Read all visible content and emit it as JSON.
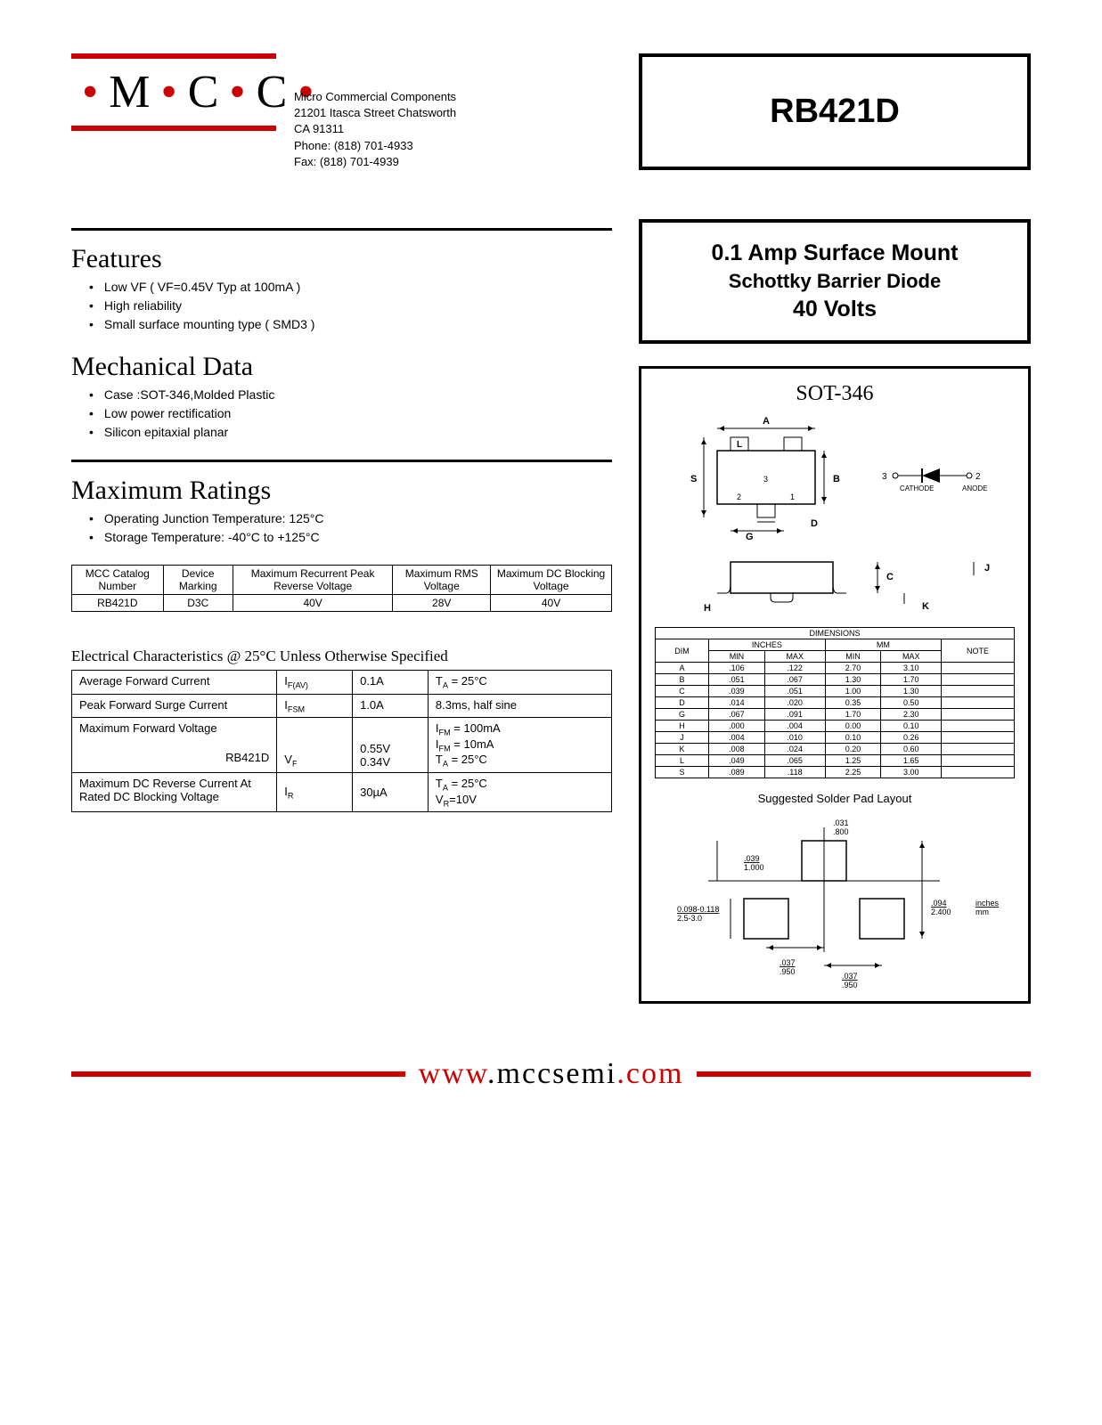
{
  "logo": "MCC",
  "company": {
    "name": "Micro Commercial Components",
    "addr1": "21201 Itasca Street Chatsworth",
    "addr2": "CA 91311",
    "phone": "Phone: (818) 701-4933",
    "fax": "Fax:     (818) 701-4939"
  },
  "part_number": "RB421D",
  "description": {
    "line1": "0.1 Amp Surface Mount",
    "line2": "Schottky Barrier Diode",
    "line3": "40 Volts"
  },
  "features": {
    "title": "Features",
    "items": [
      "Low VF ( VF=0.45V Typ at 100mA )",
      "High reliability",
      "Small surface mounting type ( SMD3 )"
    ]
  },
  "mechanical": {
    "title": "Mechanical Data",
    "items": [
      "Case :SOT-346,Molded Plastic",
      "Low power rectification",
      "Silicon epitaxial planar"
    ]
  },
  "maxratings": {
    "title": "Maximum Ratings",
    "items": [
      "Operating Junction Temperature: 125°C",
      "Storage Temperature: -40°C to +125°C"
    ],
    "headers": [
      "MCC Catalog Number",
      "Device Marking",
      "Maximum Recurrent Peak Reverse Voltage",
      "Maximum RMS Voltage",
      "Maximum DC Blocking Voltage"
    ],
    "row": [
      "RB421D",
      "D3C",
      "40V",
      "28V",
      "40V"
    ]
  },
  "elec": {
    "title": "Electrical Characteristics @ 25°C Unless Otherwise Specified",
    "rows": [
      {
        "param": "Average Forward Current",
        "sym": "I",
        "sub": "F(AV)",
        "val": "0.1A",
        "cond": "T",
        "condsub": "A",
        "condrest": " = 25°C"
      },
      {
        "param": "Peak Forward Surge Current",
        "sym": "I",
        "sub": "FSM",
        "val": "1.0A",
        "cond": "8.3ms, half sine",
        "condsub": "",
        "condrest": ""
      }
    ],
    "vf": {
      "param": "Maximum Forward Voltage",
      "sub_part": "RB421D",
      "sym": "V",
      "symsub": "F",
      "val1": "0.55V",
      "val2": "0.34V",
      "cond1a": "I",
      "cond1asub": "FM",
      "cond1b": " = 100mA",
      "cond2a": "I",
      "cond2asub": "FM",
      "cond2b": " = 10mA",
      "cond3a": "T",
      "cond3asub": "A",
      "cond3b": " = 25°C"
    },
    "ir": {
      "param": "Maximum DC Reverse Current At Rated DC Blocking Voltage",
      "sym": "I",
      "symsub": "R",
      "val": "30µA",
      "cond1a": "T",
      "cond1asub": "A",
      "cond1b": " = 25°C",
      "cond2a": "V",
      "cond2asub": "R",
      "cond2b": "=10V"
    }
  },
  "package": {
    "title": "SOT-346",
    "dim_header": "DIMENSIONS",
    "cols": [
      "DIM",
      "MIN",
      "MAX",
      "MIN",
      "MAX",
      "NOTE"
    ],
    "group": [
      "",
      "INCHES",
      "MM",
      ""
    ],
    "rows": [
      [
        "A",
        ".106",
        ".122",
        "2.70",
        "3.10",
        ""
      ],
      [
        "B",
        ".051",
        ".067",
        "1.30",
        "1.70",
        ""
      ],
      [
        "C",
        ".039",
        ".051",
        "1.00",
        "1.30",
        ""
      ],
      [
        "D",
        ".014",
        ".020",
        "0.35",
        "0.50",
        ""
      ],
      [
        "G",
        ".067",
        ".091",
        "1.70",
        "2.30",
        ""
      ],
      [
        "H",
        ".000",
        ".004",
        "0.00",
        "0.10",
        ""
      ],
      [
        "J",
        ".004",
        ".010",
        "0.10",
        "0.26",
        ""
      ],
      [
        "K",
        ".008",
        ".024",
        "0.20",
        "0.60",
        ""
      ],
      [
        "L",
        ".049",
        ".065",
        "1.25",
        "1.65",
        ""
      ],
      [
        "S",
        ".089",
        ".118",
        "2.25",
        "3.00",
        ""
      ]
    ],
    "solder_title": "Suggested Solder Pad Layout",
    "solder_dims": {
      "d1": ".031",
      "d1m": ".800",
      "d2": ".039",
      "d2m": "1.000",
      "d3": "0.098-0.118",
      "d3m": "2.5-3.0",
      "d4": ".094",
      "d4m": "2.400",
      "d5": ".037",
      "d5m": ".950",
      "d6": ".037",
      "d6m": ".950",
      "unit1": "inches",
      "unit2": "mm"
    },
    "pins": {
      "cathode": "CATHODE",
      "anode": "ANODE",
      "p1": "1",
      "p2": "2",
      "p3": "3"
    },
    "labels": {
      "A": "A",
      "B": "B",
      "C": "C",
      "D": "D",
      "G": "G",
      "H": "H",
      "J": "J",
      "K": "K",
      "L": "L",
      "S": "S"
    }
  },
  "footer": {
    "www": "www",
    "domain": ".mccsemi",
    "com": ".com"
  }
}
